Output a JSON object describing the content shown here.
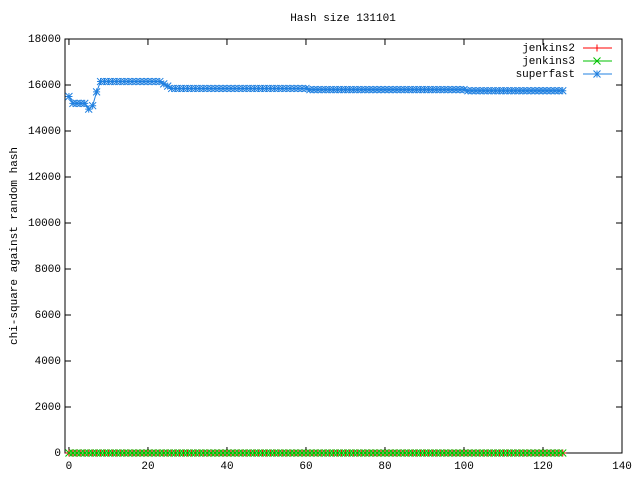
{
  "chart_data": {
    "type": "line",
    "title": "Hash size 131101",
    "y_label": "chi-square against random hash",
    "x": [
      0,
      1,
      2,
      3,
      4,
      5,
      6,
      7,
      8,
      9,
      10,
      11,
      12,
      13,
      14,
      15,
      16,
      17,
      18,
      19,
      20,
      21,
      22,
      23,
      24,
      25,
      26,
      27,
      28,
      29,
      30,
      31,
      32,
      33,
      34,
      35,
      36,
      37,
      38,
      39,
      40,
      41,
      42,
      43,
      44,
      45,
      46,
      47,
      48,
      49,
      50,
      51,
      52,
      53,
      54,
      55,
      56,
      57,
      58,
      59,
      60,
      61,
      62,
      63,
      64,
      65,
      66,
      67,
      68,
      69,
      70,
      71,
      72,
      73,
      74,
      75,
      76,
      77,
      78,
      79,
      80,
      81,
      82,
      83,
      84,
      85,
      86,
      87,
      88,
      89,
      90,
      91,
      92,
      93,
      94,
      95,
      96,
      97,
      98,
      99,
      100,
      101,
      102,
      103,
      104,
      105,
      106,
      107,
      108,
      109,
      110,
      111,
      112,
      113,
      114,
      115,
      116,
      117,
      118,
      119,
      120,
      121,
      122,
      123,
      124,
      125
    ],
    "series": [
      {
        "name": "jenkins2",
        "color": "#ff0000",
        "marker": "plus",
        "values": [
          0,
          0,
          0,
          0,
          0,
          0,
          0,
          0,
          0,
          0,
          0,
          0,
          0,
          0,
          0,
          0,
          0,
          0,
          0,
          0,
          0,
          0,
          0,
          0,
          0,
          0,
          0,
          0,
          0,
          0,
          0,
          0,
          0,
          0,
          0,
          0,
          0,
          0,
          0,
          0,
          0,
          0,
          0,
          0,
          0,
          0,
          0,
          0,
          0,
          0,
          0,
          0,
          0,
          0,
          0,
          0,
          0,
          0,
          0,
          0,
          0,
          0,
          0,
          0,
          0,
          0,
          0,
          0,
          0,
          0,
          0,
          0,
          0,
          0,
          0,
          0,
          0,
          0,
          0,
          0,
          0,
          0,
          0,
          0,
          0,
          0,
          0,
          0,
          0,
          0,
          0,
          0,
          0,
          0,
          0,
          0,
          0,
          0,
          0,
          0,
          0,
          0,
          0,
          0,
          0,
          0,
          0,
          0,
          0,
          0,
          0,
          0,
          0,
          0,
          0,
          0,
          0,
          0,
          0,
          0,
          0,
          0,
          0,
          0,
          0,
          0
        ]
      },
      {
        "name": "jenkins3",
        "color": "#00c000",
        "marker": "cross",
        "values": [
          0,
          0,
          0,
          0,
          0,
          0,
          0,
          0,
          0,
          0,
          0,
          0,
          0,
          0,
          0,
          0,
          0,
          0,
          0,
          0,
          0,
          0,
          0,
          0,
          0,
          0,
          0,
          0,
          0,
          0,
          0,
          0,
          0,
          0,
          0,
          0,
          0,
          0,
          0,
          0,
          0,
          0,
          0,
          0,
          0,
          0,
          0,
          0,
          0,
          0,
          0,
          0,
          0,
          0,
          0,
          0,
          0,
          0,
          0,
          0,
          0,
          0,
          0,
          0,
          0,
          0,
          0,
          0,
          0,
          0,
          0,
          0,
          0,
          0,
          0,
          0,
          0,
          0,
          0,
          0,
          0,
          0,
          0,
          0,
          0,
          0,
          0,
          0,
          0,
          0,
          0,
          0,
          0,
          0,
          0,
          0,
          0,
          0,
          0,
          0,
          0,
          0,
          0,
          0,
          0,
          0,
          0,
          0,
          0,
          0,
          0,
          0,
          0,
          0,
          0,
          0,
          0,
          0,
          0,
          0,
          0,
          0,
          0,
          0,
          0,
          0
        ]
      },
      {
        "name": "superfast",
        "color": "#2080e0",
        "marker": "star",
        "values": [
          15500,
          15200,
          15200,
          15200,
          15200,
          14950,
          15100,
          15700,
          16150,
          16150,
          16150,
          16150,
          16150,
          16150,
          16150,
          16150,
          16150,
          16150,
          16150,
          16150,
          16150,
          16150,
          16150,
          16150,
          16050,
          15950,
          15850,
          15850,
          15850,
          15850,
          15850,
          15850,
          15850,
          15850,
          15850,
          15850,
          15850,
          15850,
          15850,
          15850,
          15850,
          15850,
          15850,
          15850,
          15850,
          15850,
          15850,
          15850,
          15850,
          15850,
          15850,
          15850,
          15850,
          15850,
          15850,
          15850,
          15850,
          15850,
          15850,
          15850,
          15850,
          15800,
          15800,
          15800,
          15800,
          15800,
          15800,
          15800,
          15800,
          15800,
          15800,
          15800,
          15800,
          15800,
          15800,
          15800,
          15800,
          15800,
          15800,
          15800,
          15800,
          15800,
          15800,
          15800,
          15800,
          15800,
          15800,
          15800,
          15800,
          15800,
          15800,
          15800,
          15800,
          15800,
          15800,
          15800,
          15800,
          15800,
          15800,
          15800,
          15800,
          15750,
          15750,
          15750,
          15750,
          15750,
          15750,
          15750,
          15750,
          15750,
          15750,
          15750,
          15750,
          15750,
          15750,
          15750,
          15750,
          15750,
          15750,
          15750,
          15750,
          15750,
          15750,
          15750,
          15750,
          15750
        ]
      }
    ],
    "xlim": [
      -1,
      140
    ],
    "xticks": [
      0,
      20,
      40,
      60,
      80,
      100,
      120,
      140
    ],
    "ylim": [
      0,
      18000
    ],
    "yticks": [
      0,
      2000,
      4000,
      6000,
      8000,
      10000,
      12000,
      14000,
      16000,
      18000
    ],
    "legend": "top-right"
  }
}
